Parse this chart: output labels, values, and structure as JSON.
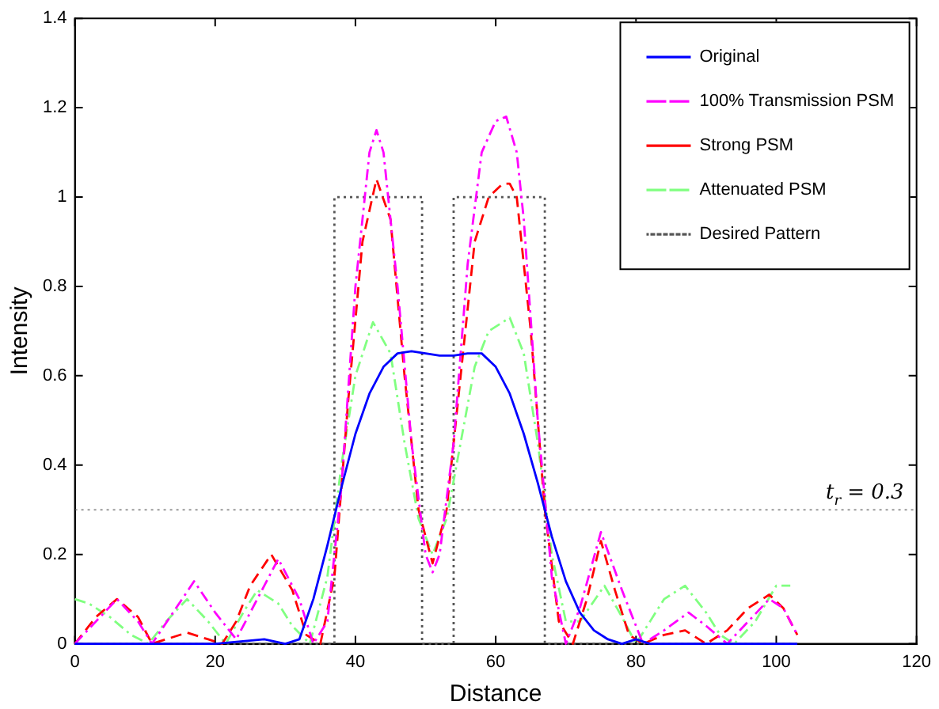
{
  "chart_data": {
    "type": "line",
    "xlabel": "Distance",
    "ylabel": "Intensity",
    "xlim": [
      0,
      120
    ],
    "xticks": [
      0,
      20,
      40,
      60,
      80,
      100,
      120
    ],
    "ylim": [
      0,
      1.4
    ],
    "yticks": [
      0,
      0.2,
      0.4,
      0.6,
      0.8,
      1,
      1.2,
      1.4
    ],
    "grid": false,
    "legend": "top right",
    "marker": "none",
    "series": [
      {
        "name": "Original",
        "color": "#0000ff",
        "line_style": "solid",
        "x": [
          0,
          20,
          27,
          30,
          32,
          34,
          36,
          38,
          40,
          42,
          44,
          46,
          48,
          50,
          52,
          54,
          56,
          58,
          60,
          62,
          64,
          66,
          68,
          70,
          72,
          74,
          76,
          78,
          80,
          82,
          103
        ],
        "values": [
          0,
          0,
          0.01,
          0,
          0.01,
          0.1,
          0.22,
          0.35,
          0.47,
          0.56,
          0.62,
          0.65,
          0.655,
          0.65,
          0.645,
          0.645,
          0.65,
          0.65,
          0.62,
          0.56,
          0.47,
          0.36,
          0.24,
          0.14,
          0.07,
          0.03,
          0.01,
          0,
          0.01,
          0,
          0
        ]
      },
      {
        "name": "100% Transmission PSM",
        "color": "#ff00ff",
        "line_style": "dashdot",
        "x": [
          0,
          3,
          6,
          9,
          11,
          14,
          17,
          20,
          23,
          26,
          29,
          32,
          34,
          36,
          38,
          40,
          42,
          43,
          44,
          46,
          48,
          50,
          51,
          52,
          54,
          56,
          58,
          60,
          61.5,
          63,
          64,
          66,
          68,
          70,
          72,
          75,
          78,
          81,
          84,
          87.5,
          90,
          93,
          96,
          99,
          101,
          103
        ],
        "values": [
          0,
          0.05,
          0.1,
          0.05,
          0,
          0.07,
          0.14,
          0.07,
          0.01,
          0.1,
          0.19,
          0.1,
          0,
          0.05,
          0.35,
          0.8,
          1.1,
          1.15,
          1.1,
          0.8,
          0.45,
          0.2,
          0.16,
          0.2,
          0.45,
          0.85,
          1.1,
          1.17,
          1.18,
          1.1,
          0.95,
          0.5,
          0.15,
          0,
          0.08,
          0.25,
          0.12,
          0,
          0.03,
          0.07,
          0.04,
          0,
          0.05,
          0.1,
          0.08,
          0.02
        ]
      },
      {
        "name": "Strong PSM",
        "color": "#ff0000",
        "line_style": "dashed",
        "x": [
          0,
          3,
          6,
          9,
          11,
          13,
          16,
          19,
          21,
          23,
          25,
          28,
          31,
          33,
          35,
          37,
          39,
          41,
          43,
          45,
          47,
          49,
          51,
          53,
          55,
          57,
          59,
          61,
          62,
          63,
          65,
          67,
          69,
          71,
          73,
          75,
          77,
          79,
          81,
          84,
          87,
          90,
          93,
          96,
          99,
          101,
          103
        ],
        "values": [
          0,
          0.06,
          0.1,
          0.06,
          0,
          0.01,
          0.025,
          0.01,
          0,
          0.05,
          0.13,
          0.2,
          0.12,
          0.02,
          0,
          0.15,
          0.55,
          0.9,
          1.04,
          0.95,
          0.6,
          0.3,
          0.18,
          0.3,
          0.6,
          0.9,
          1,
          1.03,
          1.03,
          1,
          0.7,
          0.3,
          0.05,
          0,
          0.1,
          0.23,
          0.12,
          0.02,
          0,
          0.02,
          0.03,
          0,
          0.03,
          0.08,
          0.11,
          0.08,
          0.02
        ]
      },
      {
        "name": "Attenuated PSM",
        "color": "#80ff80",
        "line_style": "dashdot",
        "x": [
          0,
          2,
          5,
          8,
          10.5,
          13,
          16,
          19,
          21.5,
          24,
          26,
          29,
          31,
          33.5,
          36,
          38,
          40,
          42.5,
          45,
          47,
          49,
          51,
          53,
          55,
          57,
          59,
          62,
          64,
          66,
          68,
          70,
          72,
          75.5,
          78,
          80,
          82,
          84,
          87,
          90,
          92,
          94,
          97,
          100,
          102
        ],
        "values": [
          0.1,
          0.09,
          0.06,
          0.02,
          0,
          0.05,
          0.1,
          0.05,
          0,
          0.07,
          0.12,
          0.09,
          0.04,
          0,
          0.15,
          0.4,
          0.6,
          0.72,
          0.65,
          0.45,
          0.28,
          0.2,
          0.28,
          0.45,
          0.62,
          0.7,
          0.73,
          0.65,
          0.45,
          0.2,
          0.05,
          0.05,
          0.13,
          0.06,
          0,
          0.05,
          0.1,
          0.13,
          0.07,
          0.02,
          0,
          0.05,
          0.13,
          0.13
        ]
      },
      {
        "name": "Desired Pattern",
        "color": "#555555",
        "line_style": "dotted",
        "x": [
          0,
          37,
          37,
          49.5,
          49.5,
          54,
          54,
          67,
          67,
          103
        ],
        "values": [
          0,
          0,
          1,
          1,
          0,
          0,
          1,
          1,
          0,
          0
        ]
      }
    ],
    "ref_lines": [
      {
        "axis": "y",
        "value": 0.3,
        "label": "t$_{r}$ = 0.3",
        "color": "#999999",
        "line_style": "dotted"
      }
    ]
  }
}
